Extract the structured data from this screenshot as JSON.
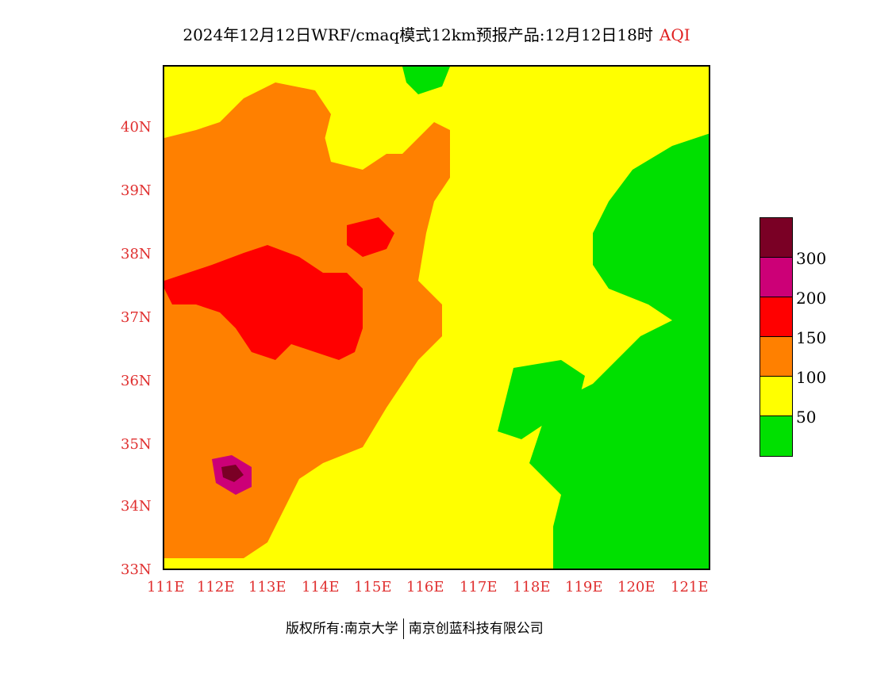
{
  "title": {
    "main": "2024年12月12日WRF/cmaq模式12km预报产品:12月12日18时",
    "variable": "AQI"
  },
  "axes": {
    "lon_labels": [
      "111E",
      "112E",
      "113E",
      "114E",
      "115E",
      "116E",
      "117E",
      "118E",
      "119E",
      "120E",
      "121E"
    ],
    "lat_labels": [
      "40N",
      "39N",
      "38N",
      "37N",
      "36N",
      "35N",
      "34N",
      "33N"
    ],
    "lon_range": [
      111,
      121.5
    ],
    "lat_range": [
      33,
      41
    ]
  },
  "legend": {
    "levels": [
      {
        "label": "300",
        "color": "#7a0025"
      },
      {
        "label": "200",
        "color": "#cc0077"
      },
      {
        "label": "150",
        "color": "#ff0000"
      },
      {
        "label": "100",
        "color": "#ff8000"
      },
      {
        "label": "50",
        "color": "#ffff00"
      },
      {
        "label": "",
        "color": "#00e000"
      }
    ]
  },
  "colors": {
    "green": "#00e000",
    "yellow": "#ffff00",
    "orange": "#ff8000",
    "red": "#ff0000",
    "magenta": "#cc0077",
    "maroon": "#7a0025",
    "axis_text": "#e03030",
    "station": "#3050ff"
  },
  "footer": {
    "left": "版权所有:南京大学",
    "right": "南京创蓝科技有限公司"
  }
}
